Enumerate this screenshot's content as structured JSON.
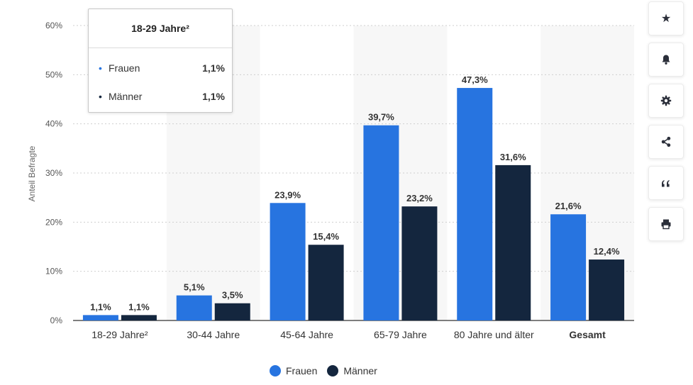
{
  "chart_data": {
    "type": "bar",
    "ylabel": "Anteil Befragte",
    "yticks": [
      "0%",
      "10%",
      "20%",
      "30%",
      "40%",
      "50%",
      "60%"
    ],
    "ylim": [
      0,
      60
    ],
    "grid": true,
    "legend_position": "bottom-center",
    "categories": [
      "18-29 Jahre²",
      "30-44 Jahre",
      "45-64 Jahre",
      "65-79 Jahre",
      "80 Jahre und älter",
      "Gesamt"
    ],
    "series": [
      {
        "name": "Frauen",
        "color": "#2774e0",
        "values": [
          1.1,
          5.1,
          23.9,
          39.7,
          47.3,
          21.6
        ],
        "labels": [
          "1,1%",
          "5,1%",
          "23,9%",
          "39,7%",
          "47,3%",
          "21,6%"
        ]
      },
      {
        "name": "Männer",
        "color": "#14263e",
        "values": [
          1.1,
          3.5,
          15.4,
          23.2,
          31.6,
          12.4
        ],
        "labels": [
          "1,1%",
          "3,5%",
          "15,4%",
          "23,2%",
          "31,6%",
          "12,4%"
        ]
      }
    ]
  },
  "tooltip": {
    "title": "18-29 Jahre²",
    "rows": [
      {
        "label": "Frauen",
        "value": "1,1%",
        "color": "#2774e0"
      },
      {
        "label": "Männer",
        "value": "1,1%",
        "color": "#14263e"
      }
    ]
  },
  "legend": {
    "items": [
      {
        "label": "Frauen",
        "color": "#2774e0"
      },
      {
        "label": "Männer",
        "color": "#14263e"
      }
    ]
  },
  "toolbar": {
    "buttons": [
      {
        "name": "star-icon",
        "glyph": "★"
      },
      {
        "name": "bell-icon",
        "glyph": "🔔"
      },
      {
        "name": "gear-icon",
        "glyph": "⚙"
      },
      {
        "name": "share-icon",
        "glyph": "share"
      },
      {
        "name": "quote-icon",
        "glyph": "❝"
      },
      {
        "name": "print-icon",
        "glyph": "print"
      }
    ]
  }
}
